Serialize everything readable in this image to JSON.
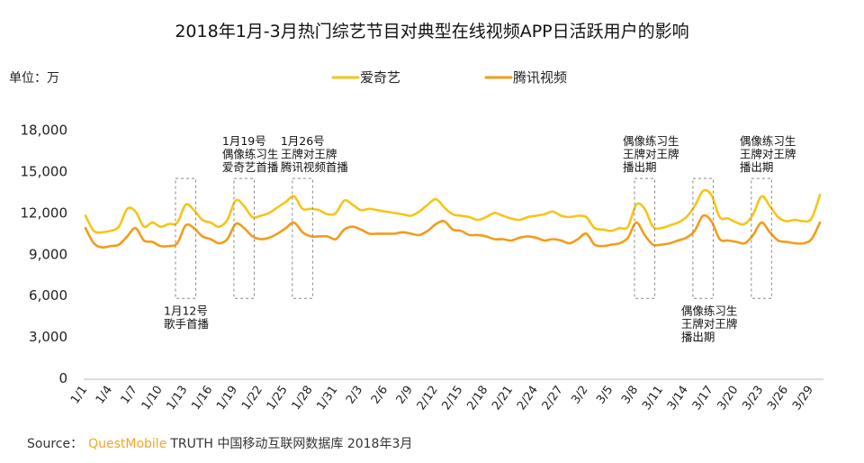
{
  "chart_data": {
    "type": "line",
    "title": "2018年1月-3月热门综艺节目对典型在线视频APP日活跃用户的影响",
    "unit_label": "单位：万",
    "y_ticks": [
      "0",
      "3,000",
      "6,000",
      "9,000",
      "12,000",
      "15,000",
      "18,000"
    ],
    "ylim": [
      0,
      20000
    ],
    "y_tick_values": [
      0,
      3000,
      6000,
      9000,
      12000,
      15000,
      18000
    ],
    "x_tick_labels": [
      "1/1",
      "1/4",
      "1/7",
      "1/10",
      "1/13",
      "1/16",
      "1/19",
      "1/22",
      "1/25",
      "1/28",
      "1/31",
      "2/3",
      "2/6",
      "2/9",
      "2/12",
      "2/15",
      "2/18",
      "2/21",
      "2/24",
      "2/27",
      "3/2",
      "3/5",
      "3/8",
      "3/11",
      "3/14",
      "3/17",
      "3/20",
      "3/23",
      "3/26",
      "3/29"
    ],
    "x_tick_days": [
      0,
      3,
      6,
      9,
      12,
      15,
      18,
      21,
      24,
      27,
      30,
      33,
      36,
      39,
      42,
      45,
      48,
      51,
      54,
      57,
      60,
      63,
      66,
      69,
      72,
      75,
      78,
      81,
      84,
      87
    ],
    "grid": false,
    "legend_position": "top",
    "series": [
      {
        "name": "爱奇艺",
        "color": "#f5c518",
        "values": [
          11800,
          10700,
          10600,
          10700,
          11000,
          12300,
          12100,
          11000,
          11300,
          11000,
          11200,
          11300,
          12600,
          12200,
          11500,
          11300,
          11000,
          11500,
          12900,
          12500,
          11700,
          11800,
          12000,
          12400,
          12800,
          13200,
          12300,
          12300,
          12200,
          11900,
          12000,
          12900,
          12600,
          12200,
          12300,
          12200,
          12100,
          12000,
          11900,
          11800,
          12100,
          12600,
          13000,
          12400,
          11900,
          11800,
          11700,
          11500,
          11700,
          12000,
          11800,
          11600,
          11500,
          11700,
          11800,
          11900,
          12100,
          11800,
          11700,
          11800,
          11700,
          10900,
          10800,
          10700,
          10900,
          11000,
          12600,
          12300,
          11000,
          10900,
          11100,
          11300,
          11700,
          12500,
          13600,
          13300,
          11700,
          11600,
          11300,
          11200,
          11900,
          13200,
          12500,
          11700,
          11400,
          11500,
          11400,
          11600,
          13300
        ]
      },
      {
        "name": "腾讯视频",
        "color": "#f39c1a",
        "values": [
          10900,
          9800,
          9500,
          9600,
          9700,
          10300,
          10900,
          10000,
          9900,
          9600,
          9600,
          9800,
          11100,
          10900,
          10300,
          10100,
          9800,
          10100,
          11200,
          10900,
          10300,
          10100,
          10200,
          10500,
          10900,
          11300,
          10600,
          10300,
          10300,
          10300,
          10100,
          10800,
          11000,
          10800,
          10500,
          10500,
          10500,
          10500,
          10600,
          10500,
          10400,
          10700,
          11200,
          11400,
          10800,
          10700,
          10400,
          10400,
          10300,
          10100,
          10100,
          10000,
          10200,
          10300,
          10200,
          10000,
          10100,
          10000,
          9800,
          10100,
          10500,
          9700,
          9600,
          9700,
          9800,
          10200,
          11300,
          10400,
          9700,
          9700,
          9800,
          10000,
          10200,
          10700,
          11800,
          11400,
          10100,
          10000,
          9900,
          9800,
          10400,
          11300,
          10600,
          10000,
          9900,
          9800,
          9800,
          10100,
          11300
        ]
      }
    ],
    "annotations": [
      {
        "label": [
          "1月12号",
          "歌手首播"
        ],
        "day_start": 11,
        "day_end": 13,
        "box_top": 14500,
        "box_bottom": 5800,
        "label_position": "below"
      },
      {
        "label": [
          "1月19号",
          "偶像练习生",
          "爱奇艺首播"
        ],
        "day_start": 18,
        "day_end": 20,
        "box_top": 14500,
        "box_bottom": 5800,
        "label_position": "above"
      },
      {
        "label": [
          "1月26号",
          "王牌对王牌",
          "腾讯视频首播"
        ],
        "day_start": 25,
        "day_end": 27,
        "box_top": 14500,
        "box_bottom": 5800,
        "label_position": "above"
      },
      {
        "label": [
          "偶像练习生",
          "王牌对王牌",
          "播出期"
        ],
        "day_start": 66,
        "day_end": 68,
        "box_top": 14500,
        "box_bottom": 5800,
        "label_position": "above"
      },
      {
        "label": [
          "偶像练习生",
          "王牌对王牌",
          "播出期"
        ],
        "day_start": 73,
        "day_end": 75,
        "box_top": 14500,
        "box_bottom": 5800,
        "label_position": "below"
      },
      {
        "label": [
          "偶像练习生",
          "王牌对王牌",
          "播出期"
        ],
        "day_start": 80,
        "day_end": 82,
        "box_top": 14500,
        "box_bottom": 5800,
        "label_position": "above"
      }
    ]
  },
  "source": {
    "prefix": "Source：",
    "brand": "QuestMobile",
    "rest": "TRUTH 中国移动互联网数据库 2018年3月"
  }
}
